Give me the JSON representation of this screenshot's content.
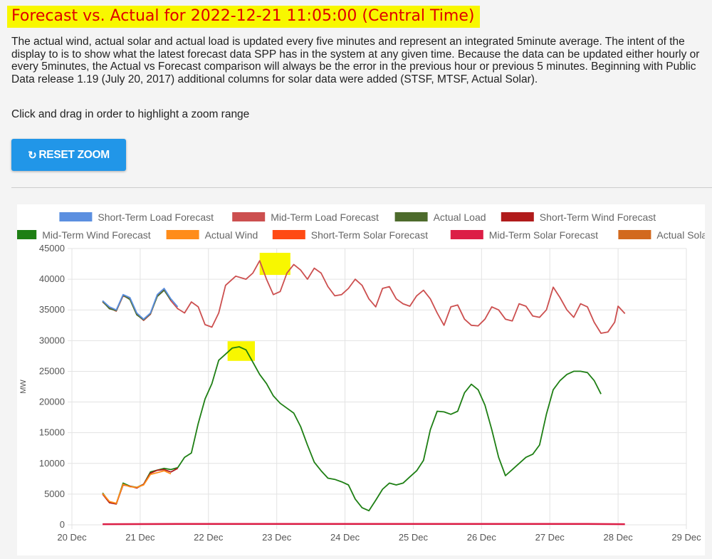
{
  "page": {
    "title": "Forecast vs. Actual for 2022-12-21 11:05:00 (Central Time)",
    "description": "The actual wind, actual solar and actual load is updated every five minutes and represent an integrated 5minute average. The intent of the display to is to show what the latest forecast data SPP has in the system at any given time. Because the data can be updated either hourly or every 5minutes, the Actual vs Forecast comparison will always be the error in the previous hour or previous 5 minutes.  Beginning with Public Data release 1.19 (July 20, 2017) additional columns for solar data were added (STSF, MTSF, Actual Solar).",
    "hint": "Click and drag in order to highlight a zoom range",
    "reset_label": "RESET ZOOM",
    "reset_icon": "refresh-icon"
  },
  "chart_data": {
    "type": "line",
    "ylabel": "MW",
    "ylim": [
      0,
      45000
    ],
    "yticks": [
      0,
      5000,
      10000,
      15000,
      20000,
      25000,
      30000,
      35000,
      40000,
      45000
    ],
    "xlim": [
      "20 Dec",
      "29 Dec"
    ],
    "xticks": [
      "20 Dec",
      "21 Dec",
      "22 Dec",
      "23 Dec",
      "24 Dec",
      "25 Dec",
      "26 Dec",
      "27 Dec",
      "28 Dec",
      "29 Dec"
    ],
    "grid": true,
    "legend_position": "top",
    "series": [
      {
        "name": "Short-Term Load Forecast",
        "color": "#5b8fe0",
        "points": [
          [
            20.45,
            36500
          ],
          [
            20.55,
            35500
          ],
          [
            20.65,
            35000
          ],
          [
            20.75,
            37500
          ],
          [
            20.85,
            37000
          ],
          [
            20.95,
            34500
          ],
          [
            21.05,
            33500
          ],
          [
            21.15,
            34500
          ],
          [
            21.25,
            37500
          ],
          [
            21.35,
            38500
          ],
          [
            21.45,
            36800
          ],
          [
            21.55,
            35500
          ]
        ]
      },
      {
        "name": "Mid-Term Load Forecast",
        "color": "#cc4f4f",
        "points": [
          [
            20.45,
            36300
          ],
          [
            20.55,
            35300
          ],
          [
            20.65,
            34800
          ],
          [
            20.75,
            37300
          ],
          [
            20.85,
            36800
          ],
          [
            20.95,
            34300
          ],
          [
            21.05,
            33300
          ],
          [
            21.15,
            34300
          ],
          [
            21.25,
            37300
          ],
          [
            21.35,
            38300
          ],
          [
            21.45,
            36500
          ],
          [
            21.55,
            35200
          ],
          [
            21.65,
            34500
          ],
          [
            21.75,
            36300
          ],
          [
            21.85,
            35500
          ],
          [
            21.95,
            32600
          ],
          [
            22.05,
            32200
          ],
          [
            22.15,
            34500
          ],
          [
            22.25,
            39000
          ],
          [
            22.4,
            40500
          ],
          [
            22.55,
            40000
          ],
          [
            22.65,
            41000
          ],
          [
            22.75,
            43000
          ],
          [
            22.85,
            40000
          ],
          [
            22.95,
            37500
          ],
          [
            23.05,
            38000
          ],
          [
            23.15,
            41000
          ],
          [
            23.25,
            42400
          ],
          [
            23.35,
            41500
          ],
          [
            23.45,
            40000
          ],
          [
            23.55,
            41800
          ],
          [
            23.65,
            41000
          ],
          [
            23.75,
            38800
          ],
          [
            23.85,
            37300
          ],
          [
            23.95,
            37500
          ],
          [
            24.05,
            38500
          ],
          [
            24.15,
            40000
          ],
          [
            24.25,
            39000
          ],
          [
            24.35,
            36800
          ],
          [
            24.45,
            35500
          ],
          [
            24.55,
            38500
          ],
          [
            24.65,
            38800
          ],
          [
            24.75,
            36800
          ],
          [
            24.85,
            36000
          ],
          [
            24.95,
            35600
          ],
          [
            25.05,
            37300
          ],
          [
            25.15,
            38200
          ],
          [
            25.25,
            36800
          ],
          [
            25.35,
            34500
          ],
          [
            25.45,
            32500
          ],
          [
            25.55,
            35500
          ],
          [
            25.65,
            35800
          ],
          [
            25.75,
            33500
          ],
          [
            25.85,
            32500
          ],
          [
            25.95,
            32400
          ],
          [
            26.05,
            33500
          ],
          [
            26.15,
            35500
          ],
          [
            26.25,
            35000
          ],
          [
            26.35,
            33500
          ],
          [
            26.45,
            33200
          ],
          [
            26.55,
            36000
          ],
          [
            26.65,
            35600
          ],
          [
            26.75,
            34000
          ],
          [
            26.85,
            33800
          ],
          [
            26.95,
            35000
          ],
          [
            27.05,
            38700
          ],
          [
            27.15,
            37000
          ],
          [
            27.25,
            35000
          ],
          [
            27.35,
            33800
          ],
          [
            27.45,
            36000
          ],
          [
            27.55,
            35500
          ],
          [
            27.65,
            33000
          ],
          [
            27.75,
            31200
          ],
          [
            27.85,
            31400
          ],
          [
            27.95,
            33000
          ],
          [
            28.0,
            35600
          ],
          [
            28.1,
            34400
          ]
        ]
      },
      {
        "name": "Actual Load",
        "color": "#4d6b2c",
        "points": [
          [
            20.45,
            36400
          ],
          [
            20.55,
            35200
          ],
          [
            20.65,
            34900
          ],
          [
            20.75,
            37400
          ],
          [
            20.85,
            36700
          ],
          [
            20.95,
            34200
          ],
          [
            21.05,
            33400
          ],
          [
            21.15,
            34400
          ],
          [
            21.25,
            37200
          ],
          [
            21.35,
            38200
          ],
          [
            21.45,
            36600
          ]
        ]
      },
      {
        "name": "Short-Term Wind Forecast",
        "color": "#b01b1b",
        "points": [
          [
            20.45,
            5000
          ],
          [
            20.55,
            3600
          ],
          [
            20.65,
            3400
          ],
          [
            20.75,
            6500
          ],
          [
            20.85,
            6300
          ],
          [
            20.95,
            6000
          ],
          [
            21.05,
            6600
          ],
          [
            21.15,
            8400
          ],
          [
            21.25,
            8900
          ],
          [
            21.35,
            9000
          ],
          [
            21.45,
            8600
          ],
          [
            21.55,
            9200
          ]
        ]
      },
      {
        "name": "Mid-Term Wind Forecast",
        "color": "#1e7f14",
        "points": [
          [
            20.45,
            5200
          ],
          [
            20.55,
            3700
          ],
          [
            20.65,
            3400
          ],
          [
            20.75,
            6800
          ],
          [
            20.85,
            6300
          ],
          [
            20.95,
            6100
          ],
          [
            21.05,
            6600
          ],
          [
            21.15,
            8600
          ],
          [
            21.25,
            8900
          ],
          [
            21.35,
            9200
          ],
          [
            21.45,
            9000
          ],
          [
            21.55,
            9300
          ],
          [
            21.65,
            11000
          ],
          [
            21.75,
            11700
          ],
          [
            21.85,
            16500
          ],
          [
            21.95,
            20500
          ],
          [
            22.05,
            23000
          ],
          [
            22.15,
            26800
          ],
          [
            22.25,
            27800
          ],
          [
            22.35,
            28800
          ],
          [
            22.45,
            29000
          ],
          [
            22.55,
            28500
          ],
          [
            22.65,
            26500
          ],
          [
            22.75,
            24500
          ],
          [
            22.85,
            23000
          ],
          [
            22.95,
            21000
          ],
          [
            23.05,
            19800
          ],
          [
            23.15,
            19000
          ],
          [
            23.25,
            18200
          ],
          [
            23.35,
            16000
          ],
          [
            23.45,
            13000
          ],
          [
            23.55,
            10200
          ],
          [
            23.65,
            8800
          ],
          [
            23.75,
            7600
          ],
          [
            23.85,
            7400
          ],
          [
            23.95,
            7000
          ],
          [
            24.05,
            6500
          ],
          [
            24.15,
            4200
          ],
          [
            24.25,
            2800
          ],
          [
            24.35,
            2300
          ],
          [
            24.45,
            4000
          ],
          [
            24.55,
            5800
          ],
          [
            24.65,
            6800
          ],
          [
            24.75,
            6500
          ],
          [
            24.85,
            6800
          ],
          [
            24.95,
            7800
          ],
          [
            25.05,
            8800
          ],
          [
            25.15,
            10500
          ],
          [
            25.25,
            15500
          ],
          [
            25.35,
            18500
          ],
          [
            25.45,
            18400
          ],
          [
            25.55,
            18000
          ],
          [
            25.65,
            18500
          ],
          [
            25.75,
            21500
          ],
          [
            25.85,
            22900
          ],
          [
            25.95,
            22000
          ],
          [
            26.05,
            19500
          ],
          [
            26.15,
            15500
          ],
          [
            26.25,
            11000
          ],
          [
            26.35,
            8000
          ],
          [
            26.45,
            9000
          ],
          [
            26.55,
            10000
          ],
          [
            26.65,
            11000
          ],
          [
            26.75,
            11500
          ],
          [
            26.85,
            13000
          ],
          [
            26.95,
            18000
          ],
          [
            27.05,
            22000
          ],
          [
            27.15,
            23500
          ],
          [
            27.25,
            24500
          ],
          [
            27.35,
            25000
          ],
          [
            27.45,
            25000
          ],
          [
            27.55,
            24800
          ],
          [
            27.65,
            23500
          ],
          [
            27.75,
            21300
          ]
        ]
      },
      {
        "name": "Actual Wind",
        "color": "#ff8c1a",
        "points": [
          [
            20.45,
            5100
          ],
          [
            20.55,
            3800
          ],
          [
            20.65,
            3500
          ],
          [
            20.75,
            6600
          ],
          [
            20.85,
            6200
          ],
          [
            20.95,
            6100
          ],
          [
            21.05,
            6500
          ],
          [
            21.15,
            8200
          ],
          [
            21.25,
            8500
          ],
          [
            21.35,
            8800
          ],
          [
            21.45,
            8300
          ]
        ]
      },
      {
        "name": "Short-Term Solar Forecast",
        "color": "#ff4a14",
        "points": []
      },
      {
        "name": "Mid-Term Solar Forecast",
        "color": "#dc1e46",
        "points": [
          [
            20.45,
            100
          ],
          [
            21.55,
            150
          ],
          [
            22.55,
            150
          ],
          [
            23.55,
            150
          ],
          [
            24.55,
            150
          ],
          [
            25.55,
            150
          ],
          [
            26.55,
            150
          ],
          [
            27.55,
            150
          ],
          [
            28.1,
            100
          ]
        ]
      },
      {
        "name": "Actual Solar",
        "color": "#d2691e",
        "points": []
      }
    ],
    "highlights": [
      "peak-load-marker",
      "peak-wind-marker"
    ],
    "highlight_color": "#f8f700"
  }
}
